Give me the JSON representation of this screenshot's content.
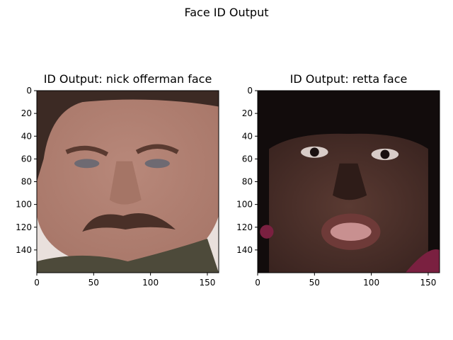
{
  "figure": {
    "title": "Face ID Output"
  },
  "chart_data": [
    {
      "type": "image",
      "title": "ID Output: nick offerman face",
      "xlim": [
        0,
        160
      ],
      "ylim": [
        160,
        0
      ],
      "xticks": [
        0,
        50,
        100,
        150
      ],
      "yticks": [
        0,
        20,
        40,
        60,
        80,
        100,
        120,
        140
      ],
      "image": "face photo (mustache, dark hair)",
      "colors": {
        "background": "#e9e0dc",
        "skin": "#a9786a",
        "hair": "#3c2a24",
        "shirt": "#4d4a3a",
        "mustache": "#4a3028"
      }
    },
    {
      "type": "image",
      "title": "ID Output: retta face",
      "xlim": [
        0,
        160
      ],
      "ylim": [
        160,
        0
      ],
      "xticks": [
        0,
        50,
        100,
        150
      ],
      "yticks": [
        0,
        20,
        40,
        60,
        80,
        100,
        120,
        140
      ],
      "image": "face photo (bangs, open mouth)",
      "colors": {
        "background": "#1e1414",
        "skin": "#3a2420",
        "hair": "#120c0c",
        "lips": "#6e3a38",
        "accent": "#7a2040"
      }
    }
  ]
}
